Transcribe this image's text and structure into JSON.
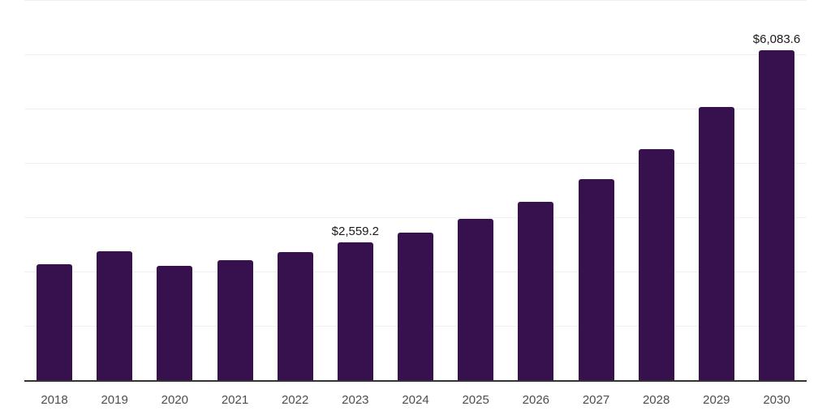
{
  "chart_data": {
    "type": "bar",
    "title": "",
    "xlabel": "",
    "ylabel": "",
    "categories": [
      "2018",
      "2019",
      "2020",
      "2021",
      "2022",
      "2023",
      "2024",
      "2025",
      "2026",
      "2027",
      "2028",
      "2029",
      "2030"
    ],
    "values": [
      2150,
      2385,
      2115,
      2230,
      2375,
      2559.2,
      2735,
      2990,
      3305,
      3720,
      4275,
      5040,
      6083.6
    ],
    "data_labels": [
      "",
      "",
      "",
      "",
      "",
      "$2,559.2",
      "",
      "",
      "",
      "",
      "",
      "",
      "$6,083.6"
    ],
    "ylim": [
      0,
      7000
    ],
    "gridline_interval": 1000,
    "grid": "horizontal",
    "legend_position": "none",
    "y_tick_labels_visible": false,
    "colors": {
      "bar": "#36114e",
      "gridline": "#f0f0f0",
      "axis_line": "#333333",
      "tick_label": "#4d4d4d",
      "data_label": "#1a1a1a",
      "background": "#ffffff"
    }
  }
}
